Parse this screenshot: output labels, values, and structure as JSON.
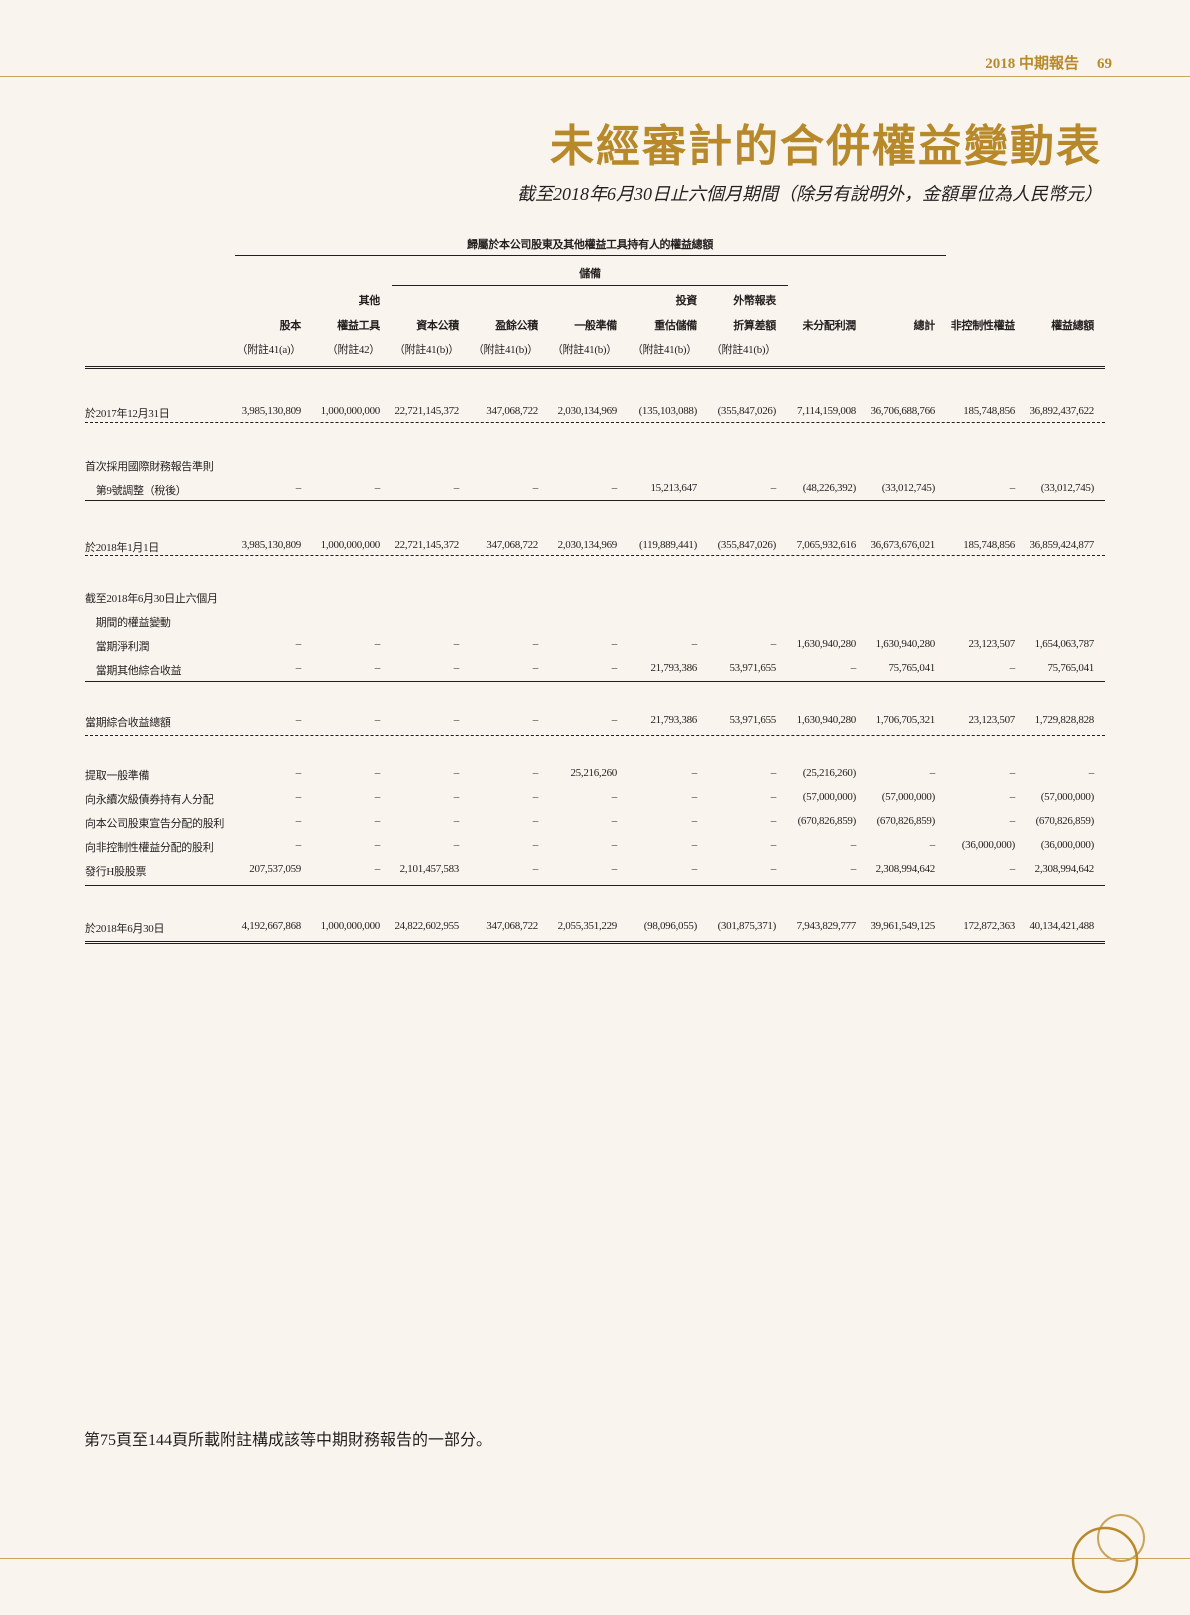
{
  "header": {
    "report": "2018 中期報告",
    "page_number": "69"
  },
  "title": "未經審計的合併權益變動表",
  "subtitle": "截至2018年6月30日止六個月期間（除另有說明外，金額單位為人民幣元）",
  "table": {
    "group_header": "歸屬於本公司股東及其他權益工具持有人的權益總額",
    "reserves_header": "儲備",
    "columns": [
      {
        "l1": "",
        "l2": "股本",
        "l3": "（附註41(a)）"
      },
      {
        "l1": "其他",
        "l2": "權益工具",
        "l3": "（附註42）"
      },
      {
        "l1": "",
        "l2": "資本公積",
        "l3": "（附註41(b)）"
      },
      {
        "l1": "",
        "l2": "盈餘公積",
        "l3": "（附註41(b)）"
      },
      {
        "l1": "",
        "l2": "一般準備",
        "l3": "（附註41(b)）"
      },
      {
        "l1": "投資",
        "l2": "重估儲備",
        "l3": "（附註41(b)）"
      },
      {
        "l1": "外幣報表",
        "l2": "折算差額",
        "l3": "（附註41(b)）"
      },
      {
        "l1": "",
        "l2": "未分配利潤",
        "l3": ""
      },
      {
        "l1": "",
        "l2": "總計",
        "l3": ""
      },
      {
        "l1": "",
        "l2": "非控制性權益",
        "l3": ""
      },
      {
        "l1": "",
        "l2": "權益總額",
        "l3": ""
      }
    ],
    "rows": [
      {
        "label": "於2017年12月31日",
        "values": [
          "3,985,130,809",
          "1,000,000,000",
          "22,721,145,372",
          "347,068,722",
          "2,030,134,969",
          "(135,103,088)",
          "(355,847,026)",
          "7,114,159,008",
          "36,706,688,766",
          "185,748,856",
          "36,892,437,622"
        ]
      },
      {
        "label": "首次採用國際財務報告準則",
        "values": []
      },
      {
        "label": "　第9號調整（稅後）",
        "values": [
          "–",
          "–",
          "–",
          "–",
          "–",
          "15,213,647",
          "–",
          "(48,226,392)",
          "(33,012,745)",
          "–",
          "(33,012,745)"
        ]
      },
      {
        "label": "於2018年1月1日",
        "values": [
          "3,985,130,809",
          "1,000,000,000",
          "22,721,145,372",
          "347,068,722",
          "2,030,134,969",
          "(119,889,441)",
          "(355,847,026)",
          "7,065,932,616",
          "36,673,676,021",
          "185,748,856",
          "36,859,424,877"
        ]
      },
      {
        "label": "截至2018年6月30日止六個月",
        "values": []
      },
      {
        "label": "　期間的權益變動",
        "values": []
      },
      {
        "label": "　當期淨利潤",
        "values": [
          "–",
          "–",
          "–",
          "–",
          "–",
          "–",
          "–",
          "1,630,940,280",
          "1,630,940,280",
          "23,123,507",
          "1,654,063,787"
        ]
      },
      {
        "label": "　當期其他綜合收益",
        "values": [
          "–",
          "–",
          "–",
          "–",
          "–",
          "21,793,386",
          "53,971,655",
          "–",
          "75,765,041",
          "–",
          "75,765,041"
        ]
      },
      {
        "label": "當期綜合收益總額",
        "values": [
          "–",
          "–",
          "–",
          "–",
          "–",
          "21,793,386",
          "53,971,655",
          "1,630,940,280",
          "1,706,705,321",
          "23,123,507",
          "1,729,828,828"
        ]
      },
      {
        "label": "提取一般準備",
        "values": [
          "–",
          "–",
          "–",
          "–",
          "25,216,260",
          "–",
          "–",
          "(25,216,260)",
          "–",
          "–",
          "–"
        ]
      },
      {
        "label": "向永續次級債券持有人分配",
        "values": [
          "–",
          "–",
          "–",
          "–",
          "–",
          "–",
          "–",
          "(57,000,000)",
          "(57,000,000)",
          "–",
          "(57,000,000)"
        ]
      },
      {
        "label": "向本公司股東宣告分配的股利",
        "values": [
          "–",
          "–",
          "–",
          "–",
          "–",
          "–",
          "–",
          "(670,826,859)",
          "(670,826,859)",
          "–",
          "(670,826,859)"
        ]
      },
      {
        "label": "向非控制性權益分配的股利",
        "values": [
          "–",
          "–",
          "–",
          "–",
          "–",
          "–",
          "–",
          "–",
          "–",
          "(36,000,000)",
          "(36,000,000)"
        ]
      },
      {
        "label": "發行H股股票",
        "values": [
          "207,537,059",
          "–",
          "2,101,457,583",
          "–",
          "–",
          "–",
          "–",
          "–",
          "2,308,994,642",
          "–",
          "2,308,994,642"
        ]
      },
      {
        "label": "於2018年6月30日",
        "values": [
          "4,192,667,868",
          "1,000,000,000",
          "24,822,602,955",
          "347,068,722",
          "2,055,351,229",
          "(98,096,055)",
          "(301,875,371)",
          "7,943,829,777",
          "39,961,549,125",
          "172,872,363",
          "40,134,421,488"
        ]
      }
    ]
  },
  "footer": "第75頁至144頁所載附註構成該等中期財務報告的一部分。",
  "colors": {
    "accent": "#b8892a",
    "background": "#f9f5ee",
    "text": "#231f20"
  }
}
